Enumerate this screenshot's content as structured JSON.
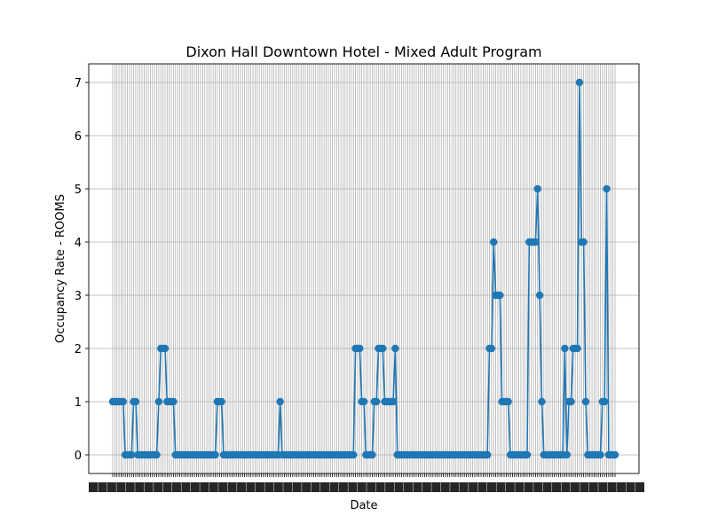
{
  "chart_data": {
    "type": "line",
    "title": "Dixon Hall Downtown Hotel - Mixed Adult Program",
    "xlabel": "Date",
    "ylabel": "Occupancy Rate - ROOMS",
    "ylim": [
      -0.35,
      7.35
    ],
    "yticks": [
      0,
      1,
      2,
      3,
      4,
      5,
      6,
      7
    ],
    "grid": true,
    "marker": "circle",
    "colors": {
      "series": "#1f77b4",
      "grid": "#b0b0b0",
      "axis": "#000000"
    },
    "x_tick_labels_legible": false,
    "series": [
      {
        "values": [
          1,
          1,
          1,
          1,
          1,
          1,
          0,
          0,
          0,
          0,
          1,
          1,
          0,
          0,
          0,
          0,
          0,
          0,
          0,
          0,
          0,
          0,
          1,
          2,
          2,
          2,
          1,
          1,
          1,
          1,
          0,
          0,
          0,
          0,
          0,
          0,
          0,
          0,
          0,
          0,
          0,
          0,
          0,
          0,
          0,
          0,
          0,
          0,
          0,
          0,
          1,
          1,
          1,
          0,
          0,
          0,
          0,
          0,
          0,
          0,
          0,
          0,
          0,
          0,
          0,
          0,
          0,
          0,
          0,
          0,
          0,
          0,
          0,
          0,
          0,
          0,
          0,
          0,
          0,
          0,
          1,
          0,
          0,
          0,
          0,
          0,
          0,
          0,
          0,
          0,
          0,
          0,
          0,
          0,
          0,
          0,
          0,
          0,
          0,
          0,
          0,
          0,
          0,
          0,
          0,
          0,
          0,
          0,
          0,
          0,
          0,
          0,
          0,
          0,
          0,
          0,
          2,
          2,
          2,
          1,
          1,
          0,
          0,
          0,
          0,
          1,
          1,
          2,
          2,
          2,
          1,
          1,
          1,
          1,
          1,
          2,
          0,
          0,
          0,
          0,
          0,
          0,
          0,
          0,
          0,
          0,
          0,
          0,
          0,
          0,
          0,
          0,
          0,
          0,
          0,
          0,
          0,
          0,
          0,
          0,
          0,
          0,
          0,
          0,
          0,
          0,
          0,
          0,
          0,
          0,
          0,
          0,
          0,
          0,
          0,
          0,
          0,
          0,
          0,
          0,
          2,
          2,
          4,
          3,
          3,
          3,
          1,
          1,
          1,
          1,
          0,
          0,
          0,
          0,
          0,
          0,
          0,
          0,
          0,
          4,
          4,
          4,
          4,
          5,
          3,
          1,
          0,
          0,
          0,
          0,
          0,
          0,
          0,
          0,
          0,
          0,
          2,
          0,
          1,
          1,
          2,
          2,
          2,
          7,
          4,
          4,
          1,
          0,
          0,
          0,
          0,
          0,
          0,
          0,
          1,
          1,
          5,
          0,
          0,
          0,
          0
        ]
      }
    ]
  }
}
